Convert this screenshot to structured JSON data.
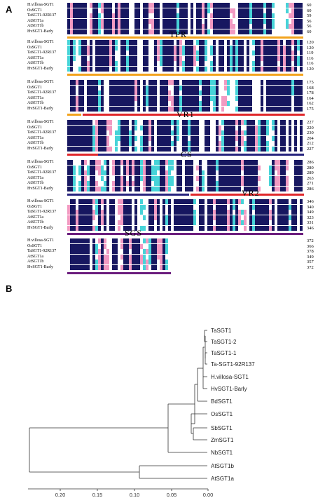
{
  "panels": {
    "a": "A",
    "b": "B"
  },
  "colors": {
    "identical": "#171760",
    "strong": "#f19ac2",
    "weak": "#47d3d8",
    "white": "#ffffff",
    "bar_orange": "#f3a31c",
    "bar_red": "#e0262a",
    "bar_blue": "#26237d",
    "bar_purple": "#6c1e7e",
    "tree_line": "#333333"
  },
  "alignment": {
    "sequence_names": [
      "H.villosa-SGT1",
      "OsSGT1",
      "TaSGT1-92R137",
      "AtSGT1a",
      "AtSGT1b",
      "HvSGT1-Barly"
    ],
    "blocks": [
      {
        "end_numbers": [
          "60",
          "60",
          "59",
          "56",
          "56",
          "60"
        ],
        "region_label": ""
      },
      {
        "end_numbers": [
          "120",
          "120",
          "119",
          "116",
          "116",
          "120"
        ],
        "region_label": "TPR"
      },
      {
        "end_numbers": [
          "175",
          "168",
          "178",
          "164",
          "162",
          "175"
        ],
        "region_label": ""
      },
      {
        "end_numbers": [
          "227",
          "220",
          "230",
          "204",
          "212",
          "227"
        ],
        "region_label": "VR1"
      },
      {
        "end_numbers": [
          "286",
          "280",
          "289",
          "263",
          "271",
          "286"
        ],
        "region_label": "CS"
      },
      {
        "end_numbers": [
          "346",
          "340",
          "349",
          "323",
          "331",
          "346"
        ],
        "region_label": "VR2"
      },
      {
        "end_numbers": [
          "372",
          "366",
          "378",
          "349",
          "357",
          "372"
        ],
        "region_label": "SGS"
      }
    ]
  },
  "tree": {
    "leaves": [
      "TaSGT1",
      "TaSGT1-2",
      "TaSGT1-1",
      "Ta-SGT1-92R137",
      "H.villosa-SGT1",
      "HvSGT1-Barly",
      "BdSGT1",
      "OsSGT1",
      "SbSGT1",
      "ZmSGT1",
      "NbSGT1",
      "AtSGT1b",
      "AtSGT1a"
    ],
    "scale_ticks": [
      "0.20",
      "0.15",
      "0.10",
      "0.05",
      "0.00"
    ]
  }
}
